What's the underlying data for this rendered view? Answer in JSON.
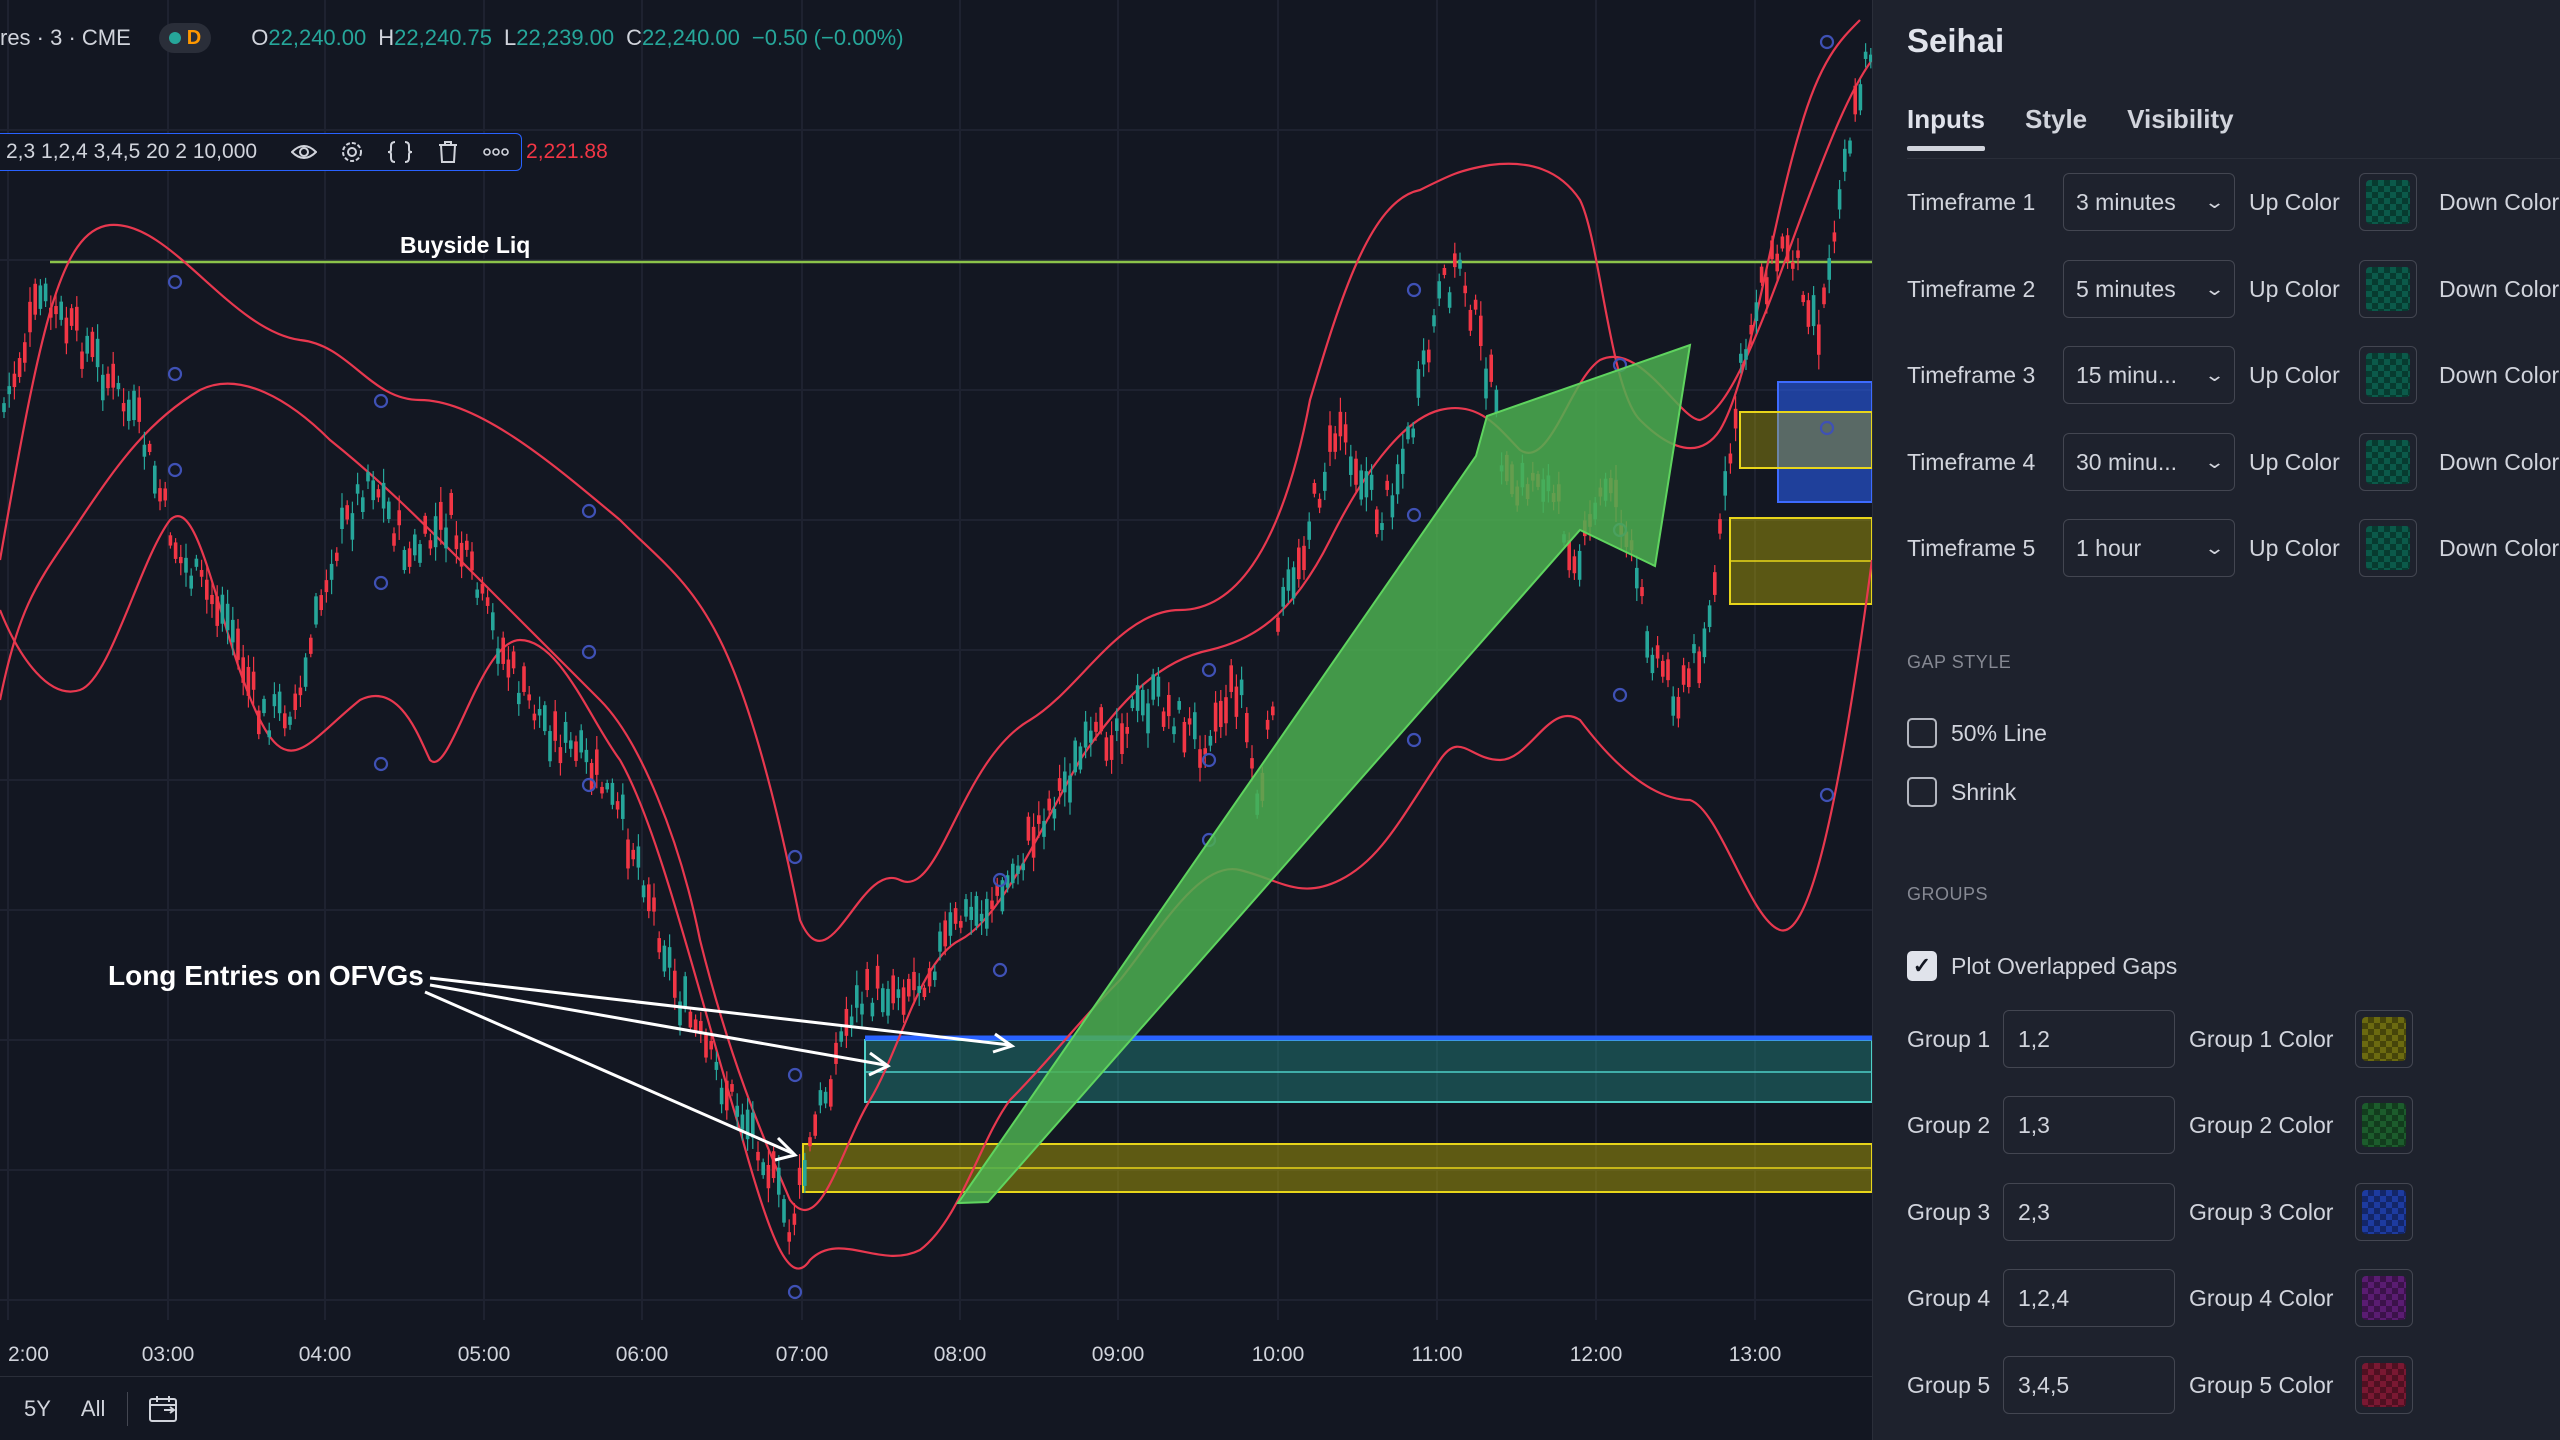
{
  "legend": {
    "symbol": "res · 3 · CME",
    "timeframe_badge": "D",
    "open_key": "O",
    "open": "22,240.00",
    "high_key": "H",
    "high": "22,240.75",
    "low_key": "L",
    "low": "22,239.00",
    "close_key": "C",
    "close": "22,240.00",
    "change": "−0.50 (−0.00%)"
  },
  "indicator": {
    "args": "2,3 1,2,4 3,4,5 20 2 10,000",
    "value": "2,221.88"
  },
  "annotations": {
    "buyside": "Buyside Liq",
    "long_entries": "Long Entries on OFVGs"
  },
  "time_axis": [
    "2:00",
    "03:00",
    "04:00",
    "05:00",
    "06:00",
    "07:00",
    "08:00",
    "09:00",
    "10:00",
    "11:00",
    "12:00",
    "13:00"
  ],
  "bottom_bar": {
    "range_5y": "5Y",
    "range_all": "All"
  },
  "panel": {
    "title": "Seihai",
    "tabs": [
      {
        "label": "Inputs",
        "active": true
      },
      {
        "label": "Style",
        "active": false
      },
      {
        "label": "Visibility",
        "active": false
      }
    ],
    "timeframes": [
      {
        "label": "Timeframe 1",
        "value": "3 minutes",
        "up": "Up Color",
        "down": "Down Color",
        "color": "#0b5a4a"
      },
      {
        "label": "Timeframe 2",
        "value": "5 minutes",
        "up": "Up Color",
        "down": "Down Color",
        "color": "#0b5a4a"
      },
      {
        "label": "Timeframe 3",
        "value": "15 minu...",
        "up": "Up Color",
        "down": "Down Color",
        "color": "#0b5a4a"
      },
      {
        "label": "Timeframe 4",
        "value": "30 minu...",
        "up": "Up Color",
        "down": "Down Color",
        "color": "#0b5a4a"
      },
      {
        "label": "Timeframe 5",
        "value": "1 hour",
        "up": "Up Color",
        "down": "Down Color",
        "color": "#0b5a4a"
      }
    ],
    "gap_style_heading": "GAP STYLE",
    "gap_style": [
      {
        "label": "50% Line",
        "checked": false
      },
      {
        "label": "Shrink",
        "checked": false
      }
    ],
    "groups_heading": "GROUPS",
    "plot_overlapped": {
      "label": "Plot Overlapped Gaps",
      "checked": true
    },
    "groups": [
      {
        "label": "Group 1",
        "value": "1,2",
        "color_label": "Group 1 Color",
        "color": "#6b6a10"
      },
      {
        "label": "Group 2",
        "value": "1,3",
        "color_label": "Group 2 Color",
        "color": "#1c5c2c"
      },
      {
        "label": "Group 3",
        "value": "2,3",
        "color_label": "Group 3 Color",
        "color": "#1d3ba0"
      },
      {
        "label": "Group 4",
        "value": "1,2,4",
        "color_label": "Group 4 Color",
        "color": "#5a1c72"
      },
      {
        "label": "Group 5",
        "value": "3,4,5",
        "color_label": "Group 5 Color",
        "color": "#7a1832"
      }
    ]
  },
  "colors": {
    "background": "#131722",
    "panel": "#1e222d",
    "up": "#26a69a",
    "down": "#f23645",
    "band": "#e8384f",
    "buyside": "#8bc34a",
    "arrow": "#4caf50"
  }
}
